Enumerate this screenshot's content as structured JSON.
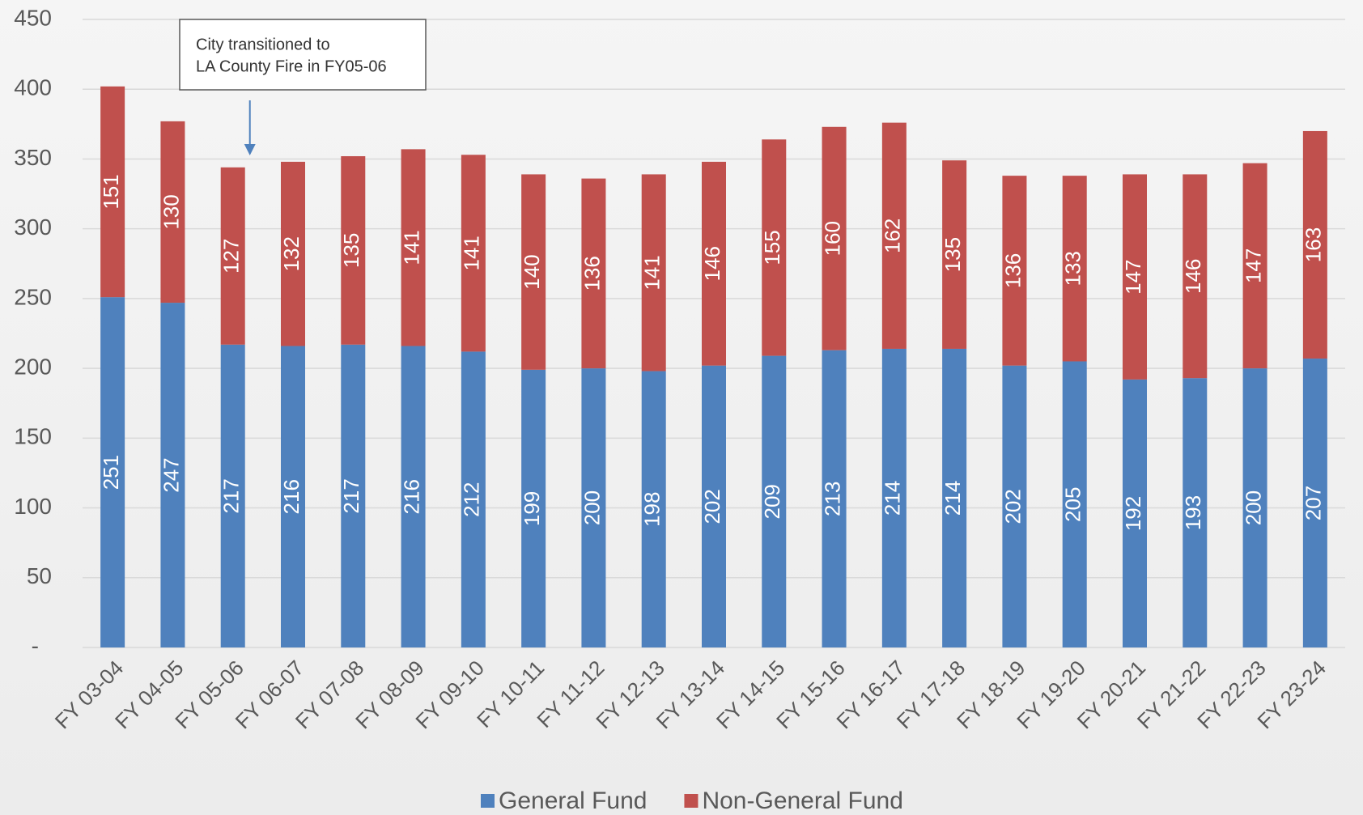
{
  "chart_data": {
    "type": "stacked_bar",
    "categories": [
      "FY 03-04",
      "FY 04-05",
      "FY 05-06",
      "FY 06-07",
      "FY 07-08",
      "FY 08-09",
      "FY 09-10",
      "FY 10-11",
      "FY 11-12",
      "FY 12-13",
      "FY 13-14",
      "FY 14-15",
      "FY 15-16",
      "FY 16-17",
      "FY 17-18",
      "FY 18-19",
      "FY 19-20",
      "FY 20-21",
      "FY 21-22",
      "FY 22-23",
      "FY 23-24"
    ],
    "series": [
      {
        "name": "General Fund",
        "color": "#4f81bd",
        "values": [
          251,
          247,
          217,
          216,
          217,
          216,
          212,
          199,
          200,
          198,
          202,
          209,
          213,
          214,
          214,
          202,
          205,
          192,
          193,
          200,
          207
        ]
      },
      {
        "name": "Non-General Fund",
        "color": "#c0504d",
        "values": [
          151,
          130,
          127,
          132,
          135,
          141,
          141,
          140,
          136,
          141,
          146,
          155,
          160,
          162,
          135,
          136,
          133,
          147,
          146,
          147,
          163
        ]
      }
    ],
    "ylim": [
      0,
      450
    ],
    "yticks": [
      {
        "value": 0,
        "label": "-"
      },
      50,
      100,
      150,
      200,
      250,
      300,
      350,
      400,
      450
    ],
    "grid": true,
    "legend": "bottom",
    "annotation": {
      "lines": [
        "City transitioned to",
        "LA County Fire in FY05-06"
      ],
      "category": 2
    }
  }
}
